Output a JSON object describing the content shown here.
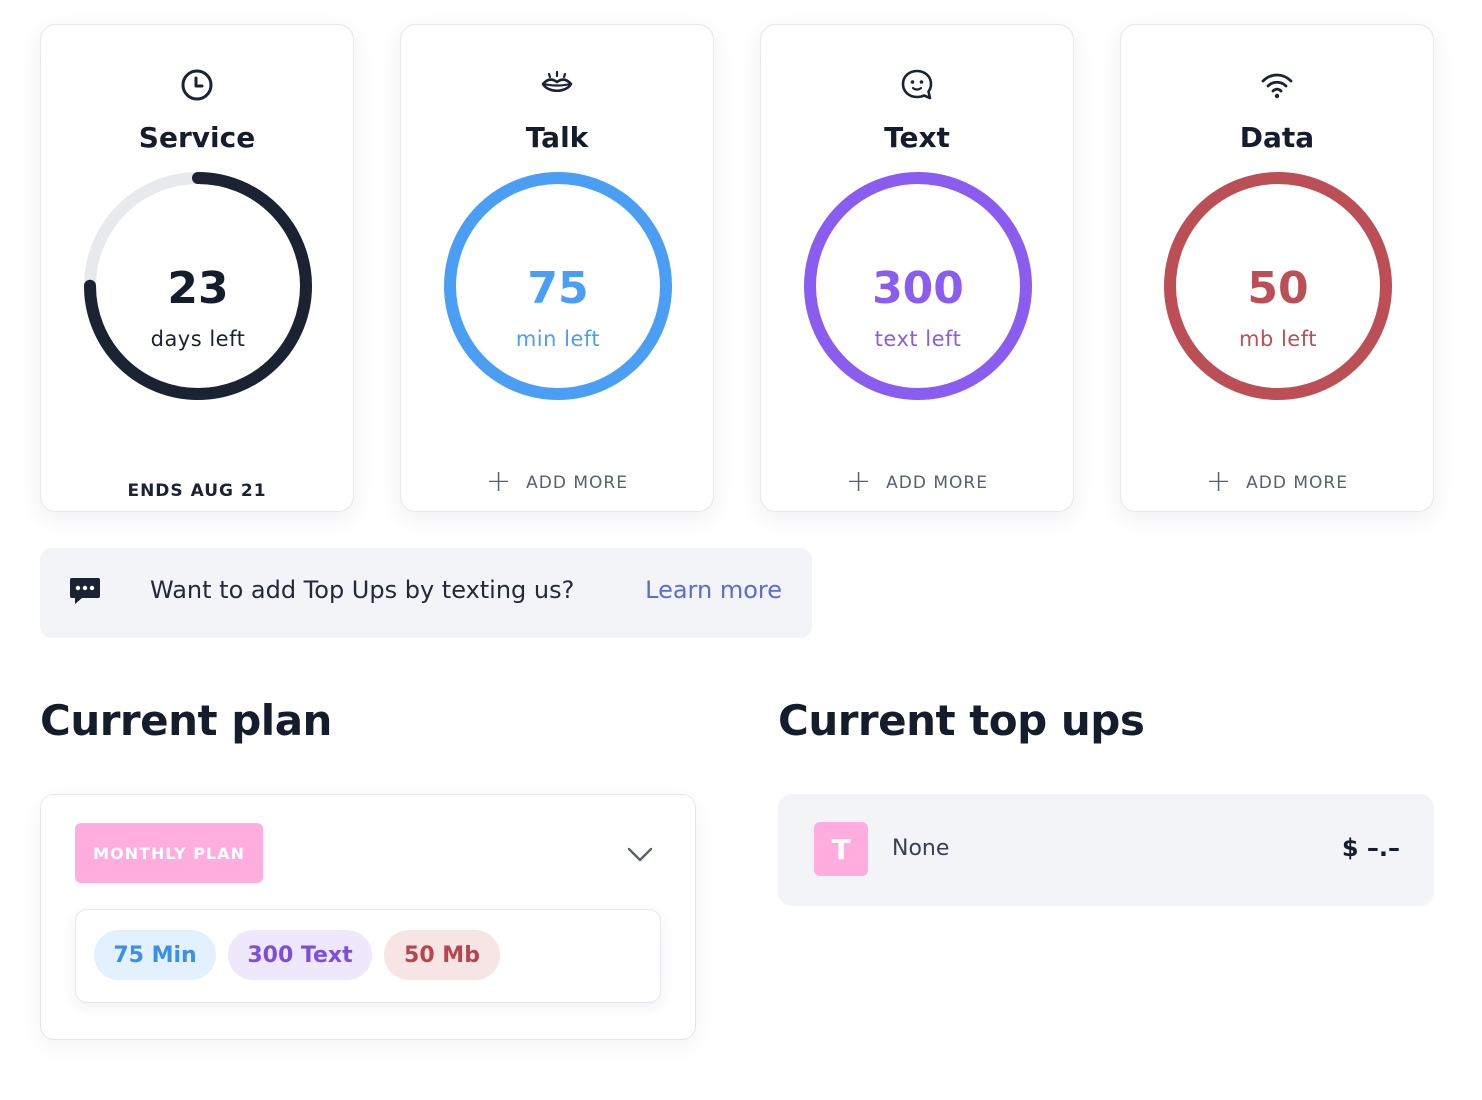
{
  "cards": {
    "service": {
      "title": "Service",
      "icon": "clock-icon",
      "value": "23",
      "unit": "days left",
      "footer": "ENDS AUG 21",
      "color": "#1b2333",
      "track": "#e8e9ec",
      "fraction": 0.75
    },
    "talk": {
      "title": "Talk",
      "icon": "lips-icon",
      "value": "75",
      "unit": "min left",
      "footer": "ADD MORE",
      "color": "#4a9ff5",
      "fraction": 1
    },
    "text": {
      "title": "Text",
      "icon": "chat-bubble-icon",
      "value": "300",
      "unit": "text left",
      "footer": "ADD MORE",
      "color": "#8a5cf0",
      "fraction": 1
    },
    "data": {
      "title": "Data",
      "icon": "wifi-icon",
      "value": "50",
      "unit": "mb left",
      "footer": "ADD MORE",
      "color": "#bc4f56",
      "fraction": 1
    }
  },
  "banner": {
    "icon": "message-dots-icon",
    "text": "Want to add Top Ups by texting us?",
    "link": "Learn more",
    "link_color": "#5c6cd6"
  },
  "current_plan": {
    "heading": "Current plan",
    "badge": "MONTHLY PLAN",
    "badge_color": "#ffadde",
    "chips": [
      {
        "label": "75 Min",
        "color": "#3a8fe6",
        "bg": "#e3f0fd"
      },
      {
        "label": "300 Text",
        "color": "#7b4fdc",
        "bg": "#efe8fd"
      },
      {
        "label": "50 Mb",
        "color": "#b6464e",
        "bg": "#f7e4e5"
      }
    ]
  },
  "current_top_ups": {
    "heading": "Current top ups",
    "item_letter": "T",
    "item_name": "None",
    "item_price": "$ –.–"
  }
}
